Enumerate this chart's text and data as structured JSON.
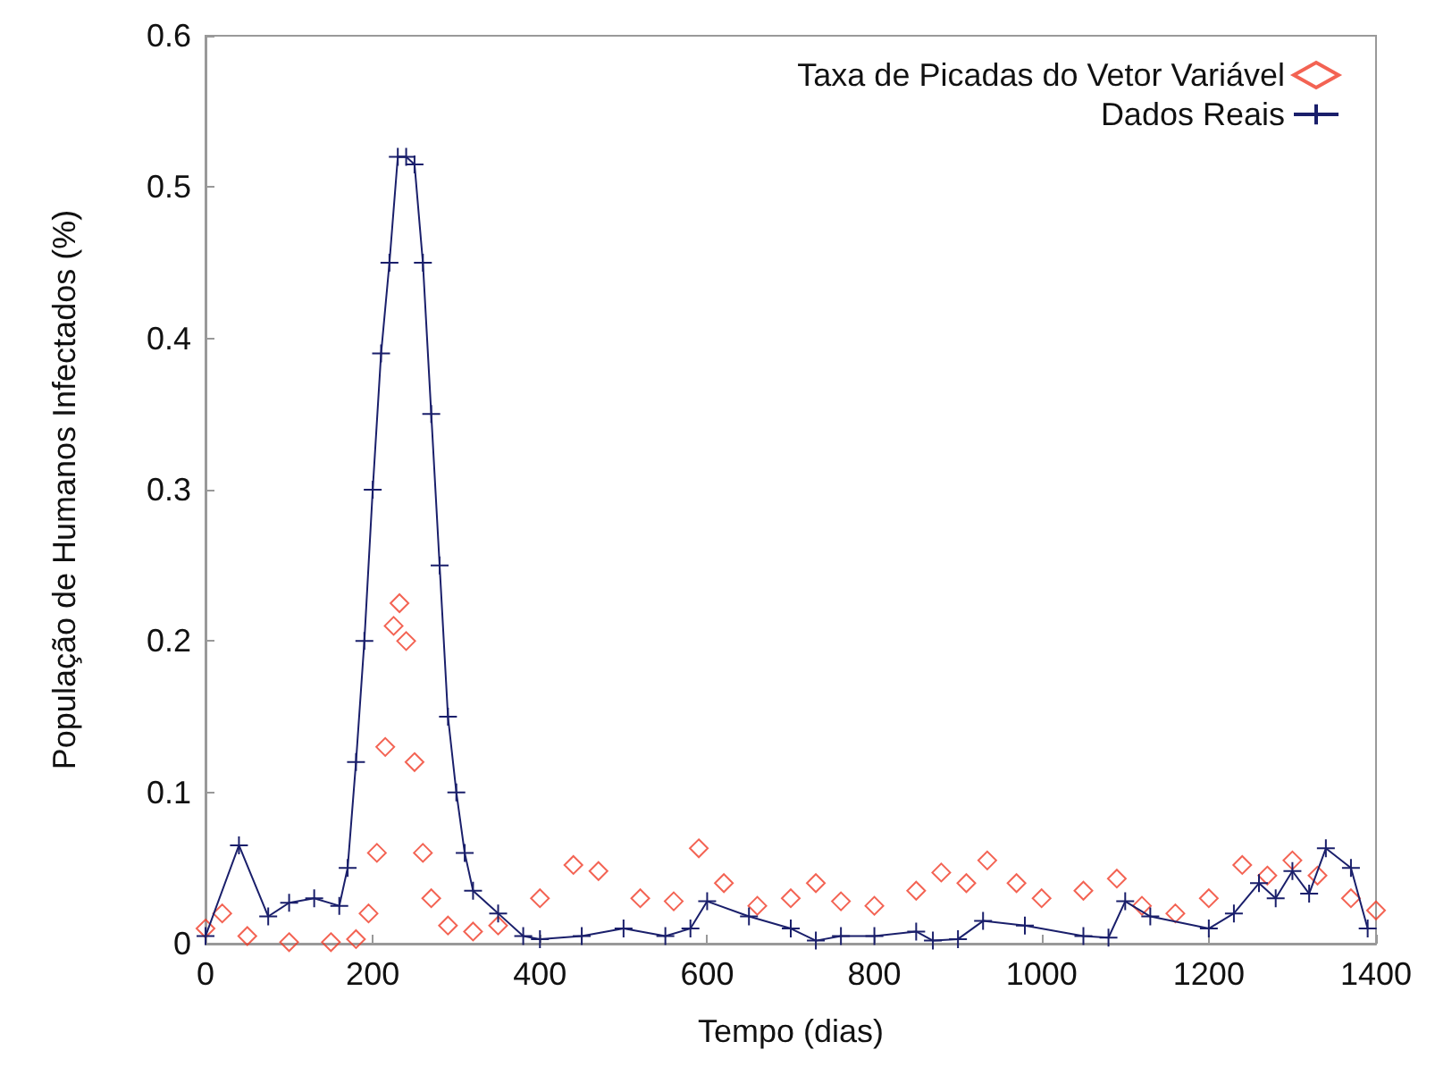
{
  "chart_data": {
    "type": "scatter",
    "xlabel": "Tempo (dias)",
    "ylabel": "População de Humanos Infectados (%)",
    "xlim": [
      0,
      1400
    ],
    "ylim": [
      0,
      0.6
    ],
    "xticks": [
      0,
      200,
      400,
      600,
      800,
      1000,
      1200,
      1400
    ],
    "yticks": [
      0,
      0.1,
      0.2,
      0.3,
      0.4,
      0.5,
      0.6
    ],
    "grid": false,
    "legend": "top right",
    "series": [
      {
        "name": "Taxa de Picadas do Vetor Variável",
        "marker": "diamond",
        "color": "#f03c28",
        "x": [
          0,
          20,
          50,
          100,
          150,
          180,
          195,
          205,
          215,
          225,
          232,
          240,
          250,
          260,
          270,
          290,
          320,
          350,
          400,
          440,
          470,
          520,
          560,
          590,
          620,
          660,
          700,
          730,
          760,
          800,
          850,
          880,
          910,
          935,
          970,
          1000,
          1050,
          1090,
          1120,
          1160,
          1200,
          1240,
          1270,
          1300,
          1330,
          1370,
          1400
        ],
        "values": [
          0.01,
          0.02,
          0.005,
          0.001,
          0.001,
          0.003,
          0.02,
          0.06,
          0.13,
          0.21,
          0.225,
          0.2,
          0.12,
          0.06,
          0.03,
          0.012,
          0.008,
          0.012,
          0.03,
          0.052,
          0.048,
          0.03,
          0.028,
          0.063,
          0.04,
          0.025,
          0.03,
          0.04,
          0.028,
          0.025,
          0.035,
          0.047,
          0.04,
          0.055,
          0.04,
          0.03,
          0.035,
          0.043,
          0.025,
          0.02,
          0.03,
          0.052,
          0.045,
          0.055,
          0.045,
          0.03,
          0.022
        ]
      },
      {
        "name": "Dados Reais",
        "type": "line",
        "marker": "cross",
        "color": "#1a1f6b",
        "x": [
          0,
          40,
          75,
          100,
          130,
          160,
          170,
          180,
          190,
          200,
          210,
          220,
          230,
          240,
          250,
          260,
          270,
          280,
          290,
          300,
          310,
          320,
          350,
          380,
          400,
          450,
          500,
          550,
          580,
          600,
          650,
          700,
          730,
          760,
          800,
          850,
          870,
          900,
          930,
          980,
          1050,
          1080,
          1100,
          1130,
          1200,
          1230,
          1260,
          1280,
          1300,
          1320,
          1340,
          1370,
          1390
        ],
        "values": [
          0.005,
          0.065,
          0.018,
          0.027,
          0.03,
          0.025,
          0.05,
          0.12,
          0.2,
          0.3,
          0.39,
          0.45,
          0.52,
          0.52,
          0.515,
          0.45,
          0.35,
          0.25,
          0.15,
          0.1,
          0.06,
          0.035,
          0.02,
          0.005,
          0.003,
          0.005,
          0.01,
          0.005,
          0.01,
          0.028,
          0.018,
          0.01,
          0.002,
          0.005,
          0.005,
          0.008,
          0.002,
          0.003,
          0.015,
          0.012,
          0.005,
          0.004,
          0.028,
          0.018,
          0.01,
          0.02,
          0.04,
          0.03,
          0.048,
          0.033,
          0.063,
          0.05,
          0.01
        ]
      }
    ]
  }
}
